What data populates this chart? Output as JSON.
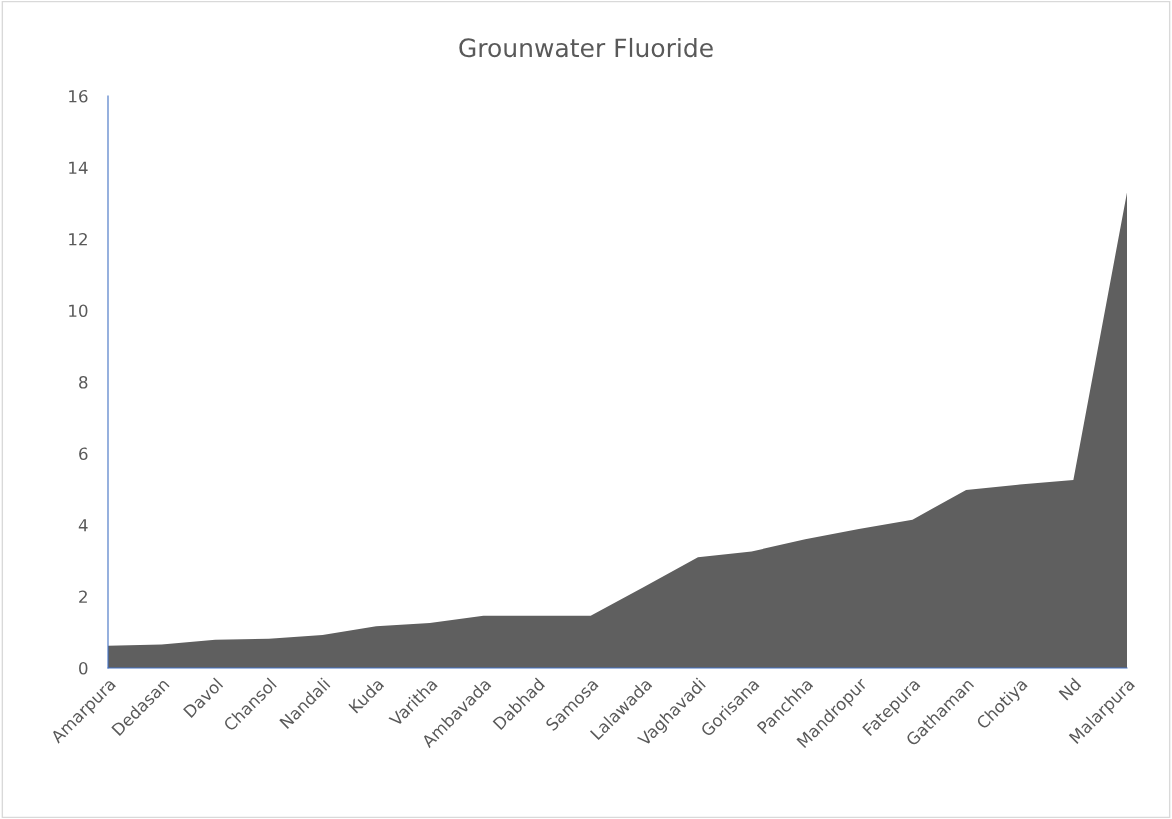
{
  "chart_data": {
    "type": "area",
    "title": "Grounwater Fluoride",
    "categories": [
      "Amarpura",
      "Dedasan",
      "Davol",
      "Chansol",
      "Nandali",
      "Kuda",
      "Varitha",
      "Ambavada",
      "Dabhad",
      "Samosa",
      "Lalawada",
      "Vaghavadi",
      "Gorisana",
      "Panchha",
      "Mandropur",
      "Fatepura",
      "Gathaman",
      "Chotiya",
      "Nd",
      "Malarpura"
    ],
    "series": [
      {
        "color": "#5f5f5f",
        "values": [
          0.62,
          0.66,
          0.79,
          0.82,
          0.92,
          1.17,
          1.26,
          1.46,
          1.46,
          1.46,
          2.27,
          3.1,
          3.26,
          3.6,
          3.89,
          4.15,
          4.98,
          5.13,
          5.26,
          13.3
        ]
      }
    ],
    "ylim": [
      0,
      16
    ],
    "yticks": [
      0,
      2,
      4,
      6,
      8,
      10,
      12,
      14,
      16
    ],
    "grid": false,
    "legend": false
  }
}
